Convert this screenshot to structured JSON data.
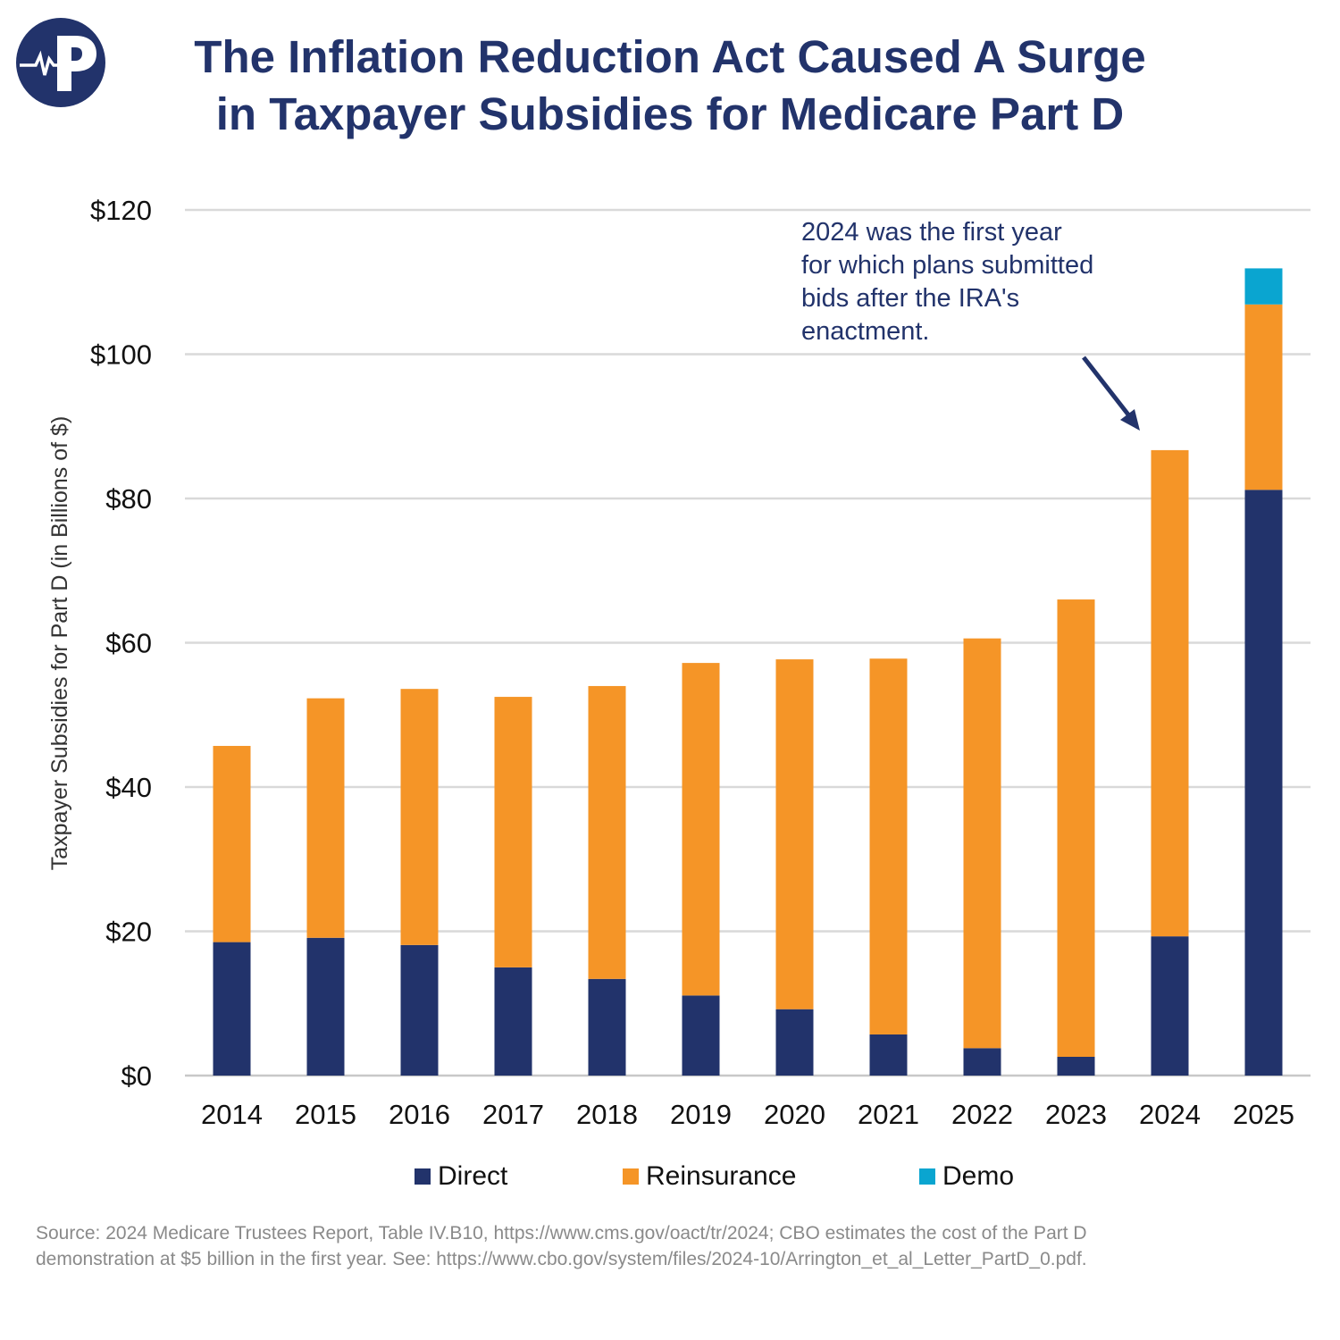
{
  "title": [
    "The Inflation Reduction Act Caused A Surge",
    "in Taxpayer Subsidies for Medicare Part D"
  ],
  "logo_letter": "P",
  "annotation": "2024 was the first year for which plans submitted bids after the IRA's enactment.",
  "source": "Source: 2024 Medicare Trustees Report, Table IV.B10, https://www.cms.gov/oact/tr/2024; CBO estimates the cost of the Part D demonstration at $5 billion in the first year. See: https://www.cbo.gov/system/files/2024-10/Arrington_et_al_Letter_PartD_0.pdf.",
  "colors": {
    "Direct": "#22336b",
    "Reinsurance": "#f59527",
    "Demo": "#0aa5d0",
    "title": "#22336b",
    "grid": "#d9d9d9"
  },
  "chart_data": {
    "type": "bar",
    "stacked": true,
    "categories": [
      "2014",
      "2015",
      "2016",
      "2017",
      "2018",
      "2019",
      "2020",
      "2021",
      "2022",
      "2023",
      "2024",
      "2025"
    ],
    "series": [
      {
        "name": "Direct",
        "values": [
          18.5,
          19.1,
          18.1,
          15.0,
          13.4,
          11.1,
          9.2,
          5.7,
          3.8,
          2.6,
          19.3,
          81.2
        ]
      },
      {
        "name": "Reinsurance",
        "values": [
          27.2,
          33.2,
          35.5,
          37.5,
          40.6,
          46.1,
          48.5,
          52.1,
          56.8,
          63.4,
          67.4,
          25.7
        ]
      },
      {
        "name": "Demo",
        "values": [
          0,
          0,
          0,
          0,
          0,
          0,
          0,
          0,
          0,
          0,
          0,
          5.0
        ]
      }
    ],
    "ylabel": "Taxpayer Subsidies for Part D (in Billions of $)",
    "ylim": [
      0,
      120
    ],
    "yticks": [
      0,
      20,
      40,
      60,
      80,
      100,
      120
    ],
    "ytick_labels": [
      "$0",
      "$20",
      "$40",
      "$60",
      "$80",
      "$100",
      "$120"
    ],
    "grid": true,
    "legend": "bottom"
  }
}
